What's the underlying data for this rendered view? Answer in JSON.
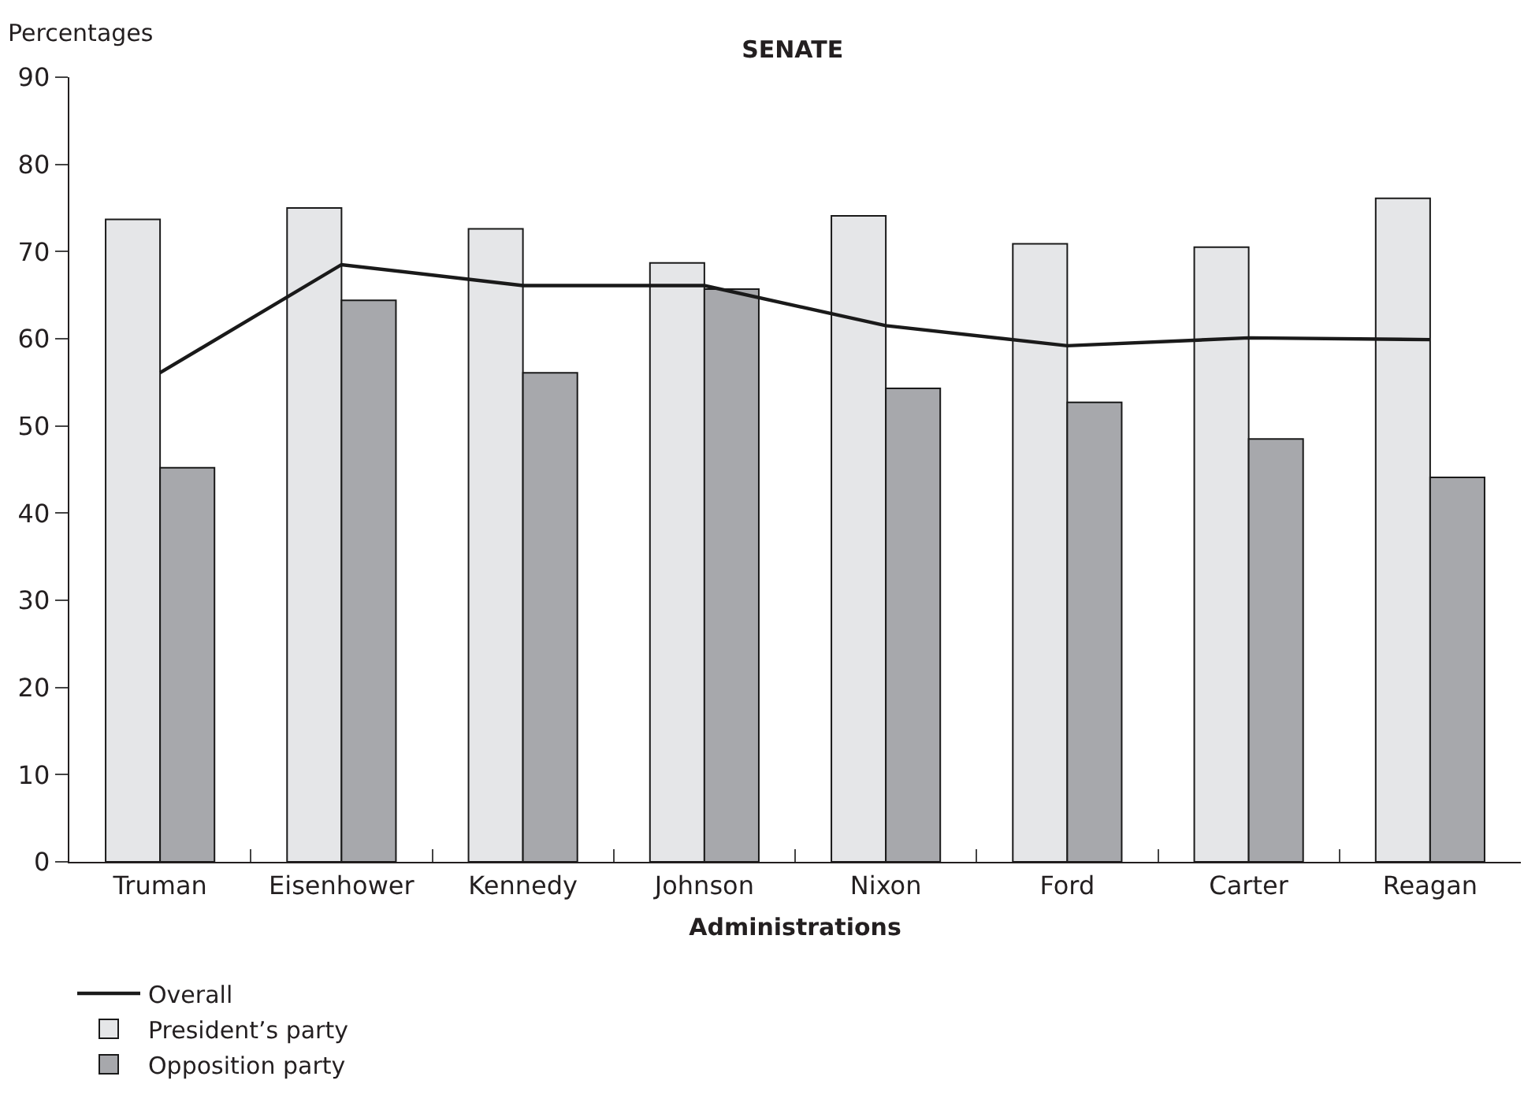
{
  "chart_data": {
    "type": "bar",
    "title": "SENATE",
    "xlabel": "Administrations",
    "ylabel": "Percentages",
    "categories": [
      "Truman",
      "Eisenhower",
      "Kennedy",
      "Johnson",
      "Nixon",
      "Ford",
      "Carter",
      "Reagan"
    ],
    "series": [
      {
        "name": "Overall",
        "type": "line",
        "color": "#1a1a1a",
        "values": [
          56.1,
          68.5,
          66.1,
          66.1,
          61.5,
          59.2,
          60.1,
          59.9
        ]
      },
      {
        "name": "President’s party",
        "color": "#e5e6e8",
        "values": [
          73.7,
          75.0,
          72.6,
          68.7,
          74.1,
          70.9,
          70.5,
          76.1
        ]
      },
      {
        "name": "Opposition party",
        "color": "#a7a8ac",
        "values": [
          45.2,
          64.4,
          56.1,
          65.7,
          54.3,
          52.7,
          48.5,
          44.1
        ]
      }
    ],
    "ylim": [
      0,
      90
    ],
    "yticks": [
      0,
      10,
      20,
      30,
      40,
      50,
      60,
      70,
      80,
      90
    ],
    "grid": false,
    "legend": "bottom left",
    "marker": "none",
    "line_style": "solid"
  }
}
